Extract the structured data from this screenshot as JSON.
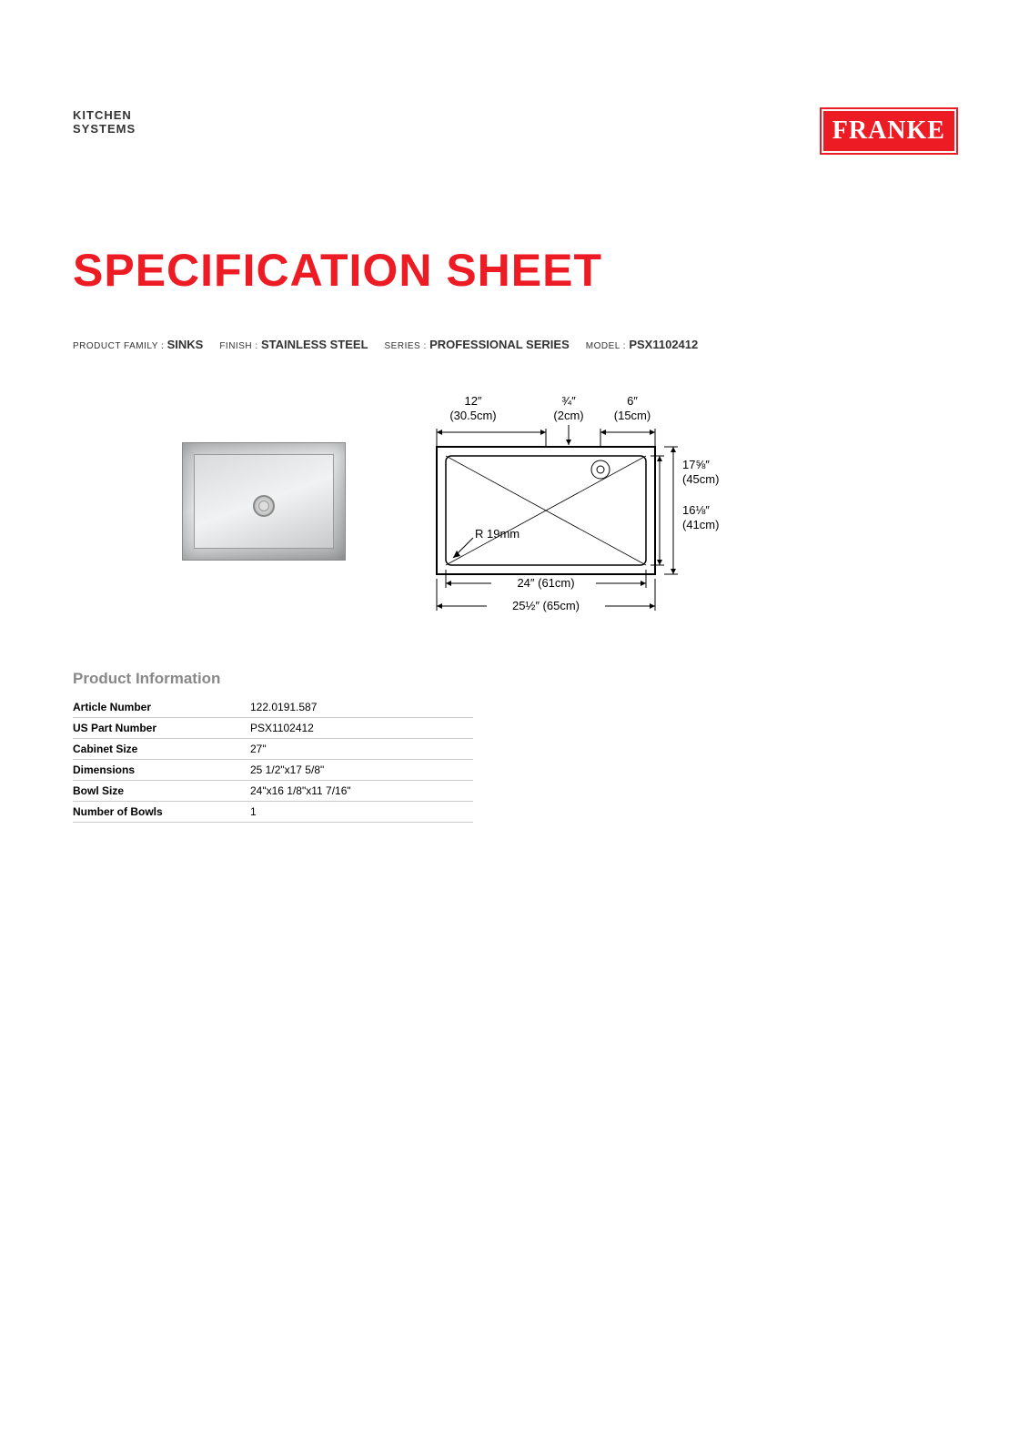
{
  "header": {
    "kitchen_line1": "KITCHEN",
    "kitchen_line2": "SYSTEMS",
    "brand": "FRANKE"
  },
  "title": "SPECIFICATION SHEET",
  "meta": {
    "family_label": "PRODUCT FAMILY :",
    "family_value": "SINKS",
    "finish_label": "FINISH :",
    "finish_value": "STAINLESS STEEL",
    "series_label": "SERIES :",
    "series_value": "PROFESSIONAL SERIES",
    "model_label": "MODEL :",
    "model_value": "PSX1102412"
  },
  "diagram": {
    "top1_in": "12″",
    "top1_cm": "(30.5cm)",
    "top2_in": "¾″",
    "top2_cm": "(2cm)",
    "top3_in": "6″",
    "top3_cm": "(15cm)",
    "right1_in": "17⅝″",
    "right1_cm": "(45cm)",
    "right2_in": "16⅛″",
    "right2_cm": "(41cm)",
    "radius": "R 19mm",
    "bottom1": "24″ (61cm)",
    "bottom2": "25½″ (65cm)"
  },
  "product_info": {
    "heading": "Product Information",
    "rows": [
      {
        "label": "Article Number",
        "value": "122.0191.587"
      },
      {
        "label": "US Part Number",
        "value": "PSX1102412"
      },
      {
        "label": "Cabinet Size",
        "value": "27\""
      },
      {
        "label": "Dimensions",
        "value": "25 1/2\"x17 5/8\""
      },
      {
        "label": "Bowl Size",
        "value": "24\"x16 1/8\"x11 7/16\""
      },
      {
        "label": "Number of Bowls",
        "value": "1"
      }
    ]
  },
  "colors": {
    "brand_red": "#ed1c24",
    "text_gray": "#888888",
    "line_gray": "#cccccc"
  }
}
